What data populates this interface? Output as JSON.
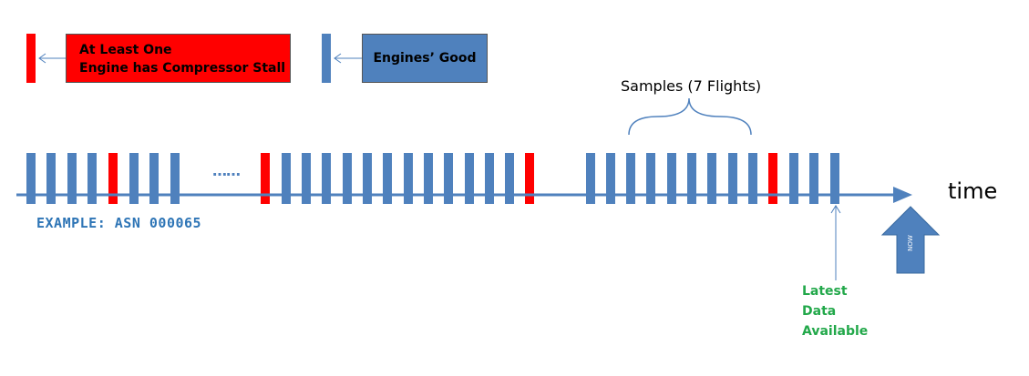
{
  "legend": {
    "stall_line1": "At Least One",
    "stall_line2": "Engine has Compressor Stall",
    "good": "Engines’ Good"
  },
  "samples_label": "Samples (7 Flights)",
  "time_label": "time",
  "example_label": "EXAMPLE: ASN 000065",
  "ellipsis": "……",
  "latest": {
    "line1": "Latest",
    "line2": "Data",
    "line3": "Available"
  },
  "now_label": "NOW",
  "colors": {
    "good": "#4f81bd",
    "stall": "#ff0000",
    "axis": "#4f81bd",
    "latest_text": "#22a84a",
    "example_text": "#2e75b6"
  },
  "flights": [
    "good",
    "good",
    "good",
    "good",
    "stall",
    "good",
    "good",
    "good",
    "stall",
    "good",
    "good",
    "good",
    "good",
    "good",
    "good",
    "good",
    "good",
    "good",
    "good",
    "good",
    "good",
    "stall",
    "good",
    "good",
    "good",
    "good",
    "good",
    "good",
    "good",
    "good",
    "good",
    "stall",
    "good",
    "good",
    "good"
  ]
}
